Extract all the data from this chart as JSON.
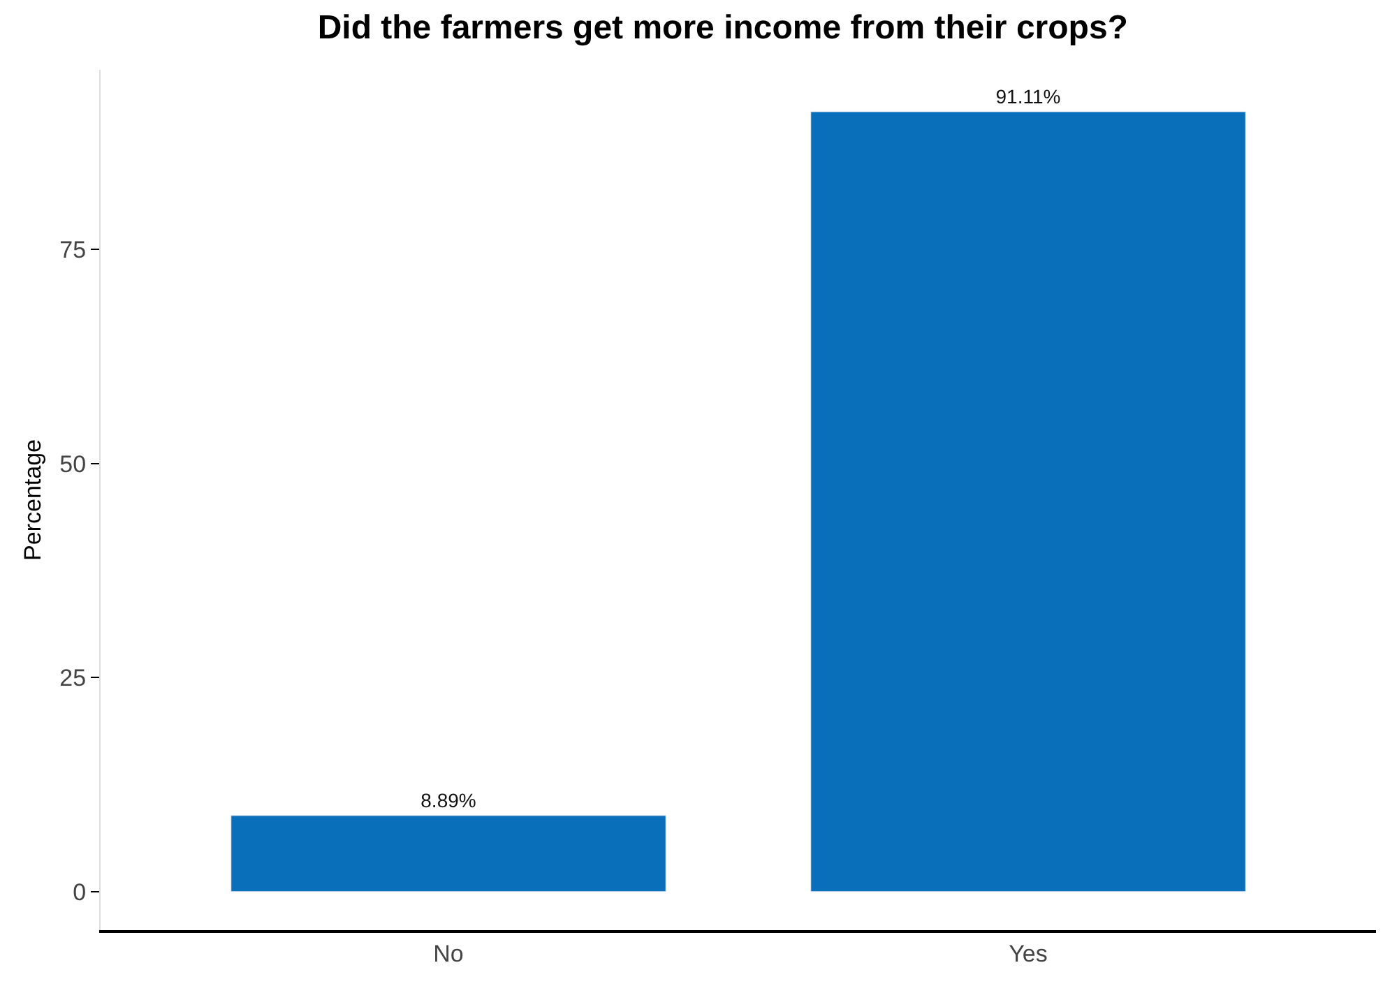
{
  "chart_data": {
    "type": "bar",
    "title": "Did the farmers get more income from their crops?",
    "ylabel": "Percentage",
    "categories": [
      "No",
      "Yes"
    ],
    "values": [
      8.89,
      91.11
    ],
    "value_labels": [
      "8.89%",
      "91.11%"
    ],
    "color": "#0a6fba",
    "ylim": [
      -4.5,
      96
    ],
    "yticks": [
      0,
      25,
      50,
      75
    ],
    "legend": false
  }
}
